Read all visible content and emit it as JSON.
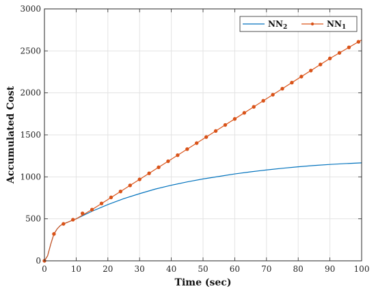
{
  "chart_data": {
    "type": "line",
    "title": "",
    "xlabel": "Time (sec)",
    "ylabel": "Accumulated Cost",
    "xlim": [
      0,
      100
    ],
    "ylim": [
      0,
      3000
    ],
    "xticks": [
      0,
      10,
      20,
      30,
      40,
      50,
      60,
      70,
      80,
      90,
      100
    ],
    "yticks": [
      0,
      500,
      1000,
      1500,
      2000,
      2500,
      3000
    ],
    "grid": true,
    "legend_position": "top-right",
    "series": [
      {
        "name": "NN",
        "subscript": "2",
        "color": "#0072BD",
        "marker": "none",
        "x": [
          0,
          1,
          2,
          3,
          4,
          5,
          6,
          8,
          10,
          15,
          20,
          25,
          30,
          35,
          40,
          45,
          50,
          55,
          60,
          65,
          70,
          75,
          80,
          85,
          90,
          95,
          100
        ],
        "y": [
          0,
          60,
          200,
          320,
          380,
          420,
          440,
          470,
          500,
          590,
          670,
          740,
          800,
          855,
          900,
          940,
          975,
          1005,
          1035,
          1060,
          1082,
          1102,
          1120,
          1135,
          1148,
          1158,
          1167
        ]
      },
      {
        "name": "NN",
        "subscript": "1",
        "color": "#D95319",
        "marker": "circle",
        "x": [
          0,
          1,
          2,
          3,
          4,
          5,
          6,
          8,
          10,
          15,
          20,
          25,
          30,
          35,
          40,
          45,
          50,
          55,
          60,
          65,
          70,
          75,
          80,
          85,
          90,
          95,
          100
        ],
        "y": [
          0,
          60,
          200,
          320,
          380,
          420,
          440,
          470,
          500,
          610,
          730,
          850,
          970,
          1090,
          1210,
          1330,
          1450,
          1570,
          1690,
          1810,
          1930,
          2050,
          2170,
          2290,
          2410,
          2520,
          2630
        ],
        "marker_x": [
          0,
          3,
          6,
          9,
          12,
          15,
          18,
          21,
          24,
          27,
          30,
          33,
          36,
          39,
          42,
          45,
          48,
          51,
          54,
          57,
          60,
          63,
          66,
          69,
          72,
          75,
          78,
          81,
          84,
          87,
          90,
          93,
          96,
          99
        ],
        "marker_y": [
          0,
          320,
          440,
          490,
          565,
          610,
          683,
          755,
          826,
          898,
          970,
          1042,
          1114,
          1186,
          1258,
          1330,
          1402,
          1474,
          1546,
          1618,
          1690,
          1762,
          1834,
          1906,
          1978,
          2050,
          2122,
          2194,
          2266,
          2338,
          2410,
          2476,
          2542,
          2608
        ]
      }
    ]
  }
}
